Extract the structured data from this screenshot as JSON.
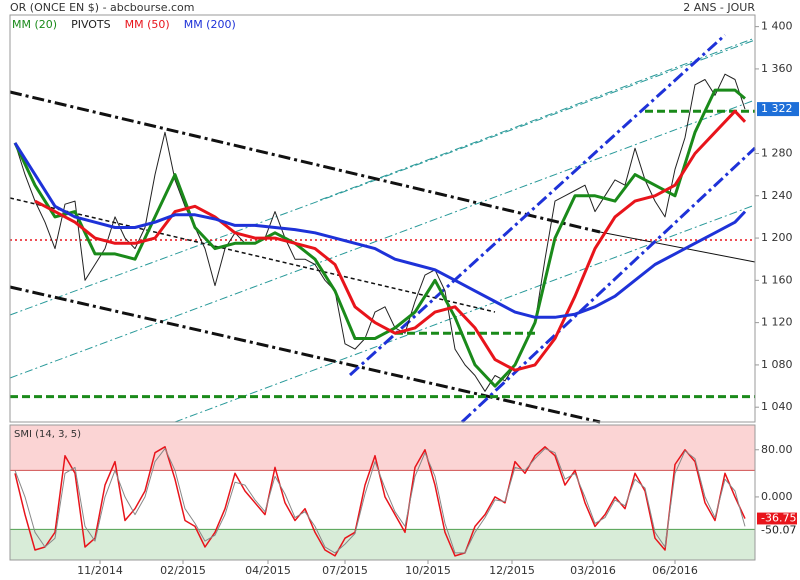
{
  "chart_data": [
    {
      "type": "line",
      "title": "OR (ONCE EN $) - abcbourse.com",
      "subtitle": "2 ANS - JOUR",
      "xlim": [
        -0.5,
        74
      ],
      "ylim": [
        1026,
        1411
      ],
      "yticks": [
        {
          "value": 1040,
          "label": "1 040"
        },
        {
          "value": 1080,
          "label": "1 080"
        },
        {
          "value": 1120,
          "label": "1 120"
        },
        {
          "value": 1160,
          "label": "1 160"
        },
        {
          "value": 1200,
          "label": "1 200"
        },
        {
          "value": 1240,
          "label": "1 240"
        },
        {
          "value": 1280,
          "label": "1 280"
        },
        {
          "value": 1360,
          "label": "1 360"
        },
        {
          "value": 1400,
          "label": "1 400"
        }
      ],
      "current": {
        "value": 1322,
        "label": "1 322"
      },
      "series": [
        {
          "color": "#222222",
          "width": 1,
          "x": [
            0,
            1,
            2,
            3,
            4,
            5,
            6,
            7,
            8,
            9,
            10,
            11,
            12,
            13,
            14,
            15,
            16,
            17,
            18,
            19,
            20,
            21,
            22,
            23,
            24,
            25,
            26,
            27,
            28,
            29,
            30,
            31,
            32,
            33,
            34,
            35,
            36,
            37,
            38,
            39,
            40,
            41,
            42,
            43,
            44,
            45,
            46,
            47,
            48,
            49,
            50,
            51,
            52,
            53,
            54,
            55,
            56,
            57,
            58,
            59,
            60,
            61,
            62,
            63,
            64,
            65,
            66,
            67,
            68,
            69,
            70,
            71,
            72,
            73
          ],
          "values": [
            1290,
            1260,
            1235,
            1215,
            1190,
            1232,
            1235,
            1160,
            1175,
            1190,
            1220,
            1200,
            1190,
            1210,
            1260,
            1300,
            1255,
            1230,
            1210,
            1190,
            1155,
            1190,
            1205,
            1195,
            1195,
            1200,
            1225,
            1200,
            1180,
            1180,
            1175,
            1160,
            1150,
            1100,
            1095,
            1105,
            1130,
            1135,
            1115,
            1110,
            1140,
            1165,
            1170,
            1150,
            1095,
            1080,
            1070,
            1055,
            1070,
            1065,
            1080,
            1100,
            1120,
            1180,
            1235,
            1240,
            1245,
            1250,
            1225,
            1240,
            1255,
            1250,
            1285,
            1255,
            1235,
            1220,
            1265,
            1295,
            1345,
            1350,
            1335,
            1355,
            1350,
            1322
          ]
        },
        {
          "name": "MM (20)",
          "color": "#1a8a1a",
          "width": 3,
          "x": [
            0,
            2,
            4,
            6,
            8,
            10,
            12,
            14,
            16,
            18,
            20,
            22,
            24,
            26,
            28,
            30,
            32,
            34,
            36,
            38,
            40,
            42,
            44,
            46,
            48,
            50,
            52,
            54,
            56,
            58,
            60,
            62,
            64,
            66,
            68,
            70,
            72,
            73
          ],
          "values": [
            1290,
            1250,
            1220,
            1225,
            1185,
            1185,
            1180,
            1220,
            1260,
            1210,
            1190,
            1195,
            1195,
            1205,
            1195,
            1180,
            1150,
            1105,
            1105,
            1115,
            1130,
            1160,
            1125,
            1080,
            1060,
            1080,
            1120,
            1200,
            1240,
            1240,
            1235,
            1260,
            1250,
            1240,
            1300,
            1340,
            1340,
            1332
          ]
        },
        {
          "name": "MM (50)",
          "color": "#e8141b",
          "width": 3,
          "x": [
            2,
            4,
            6,
            8,
            10,
            12,
            14,
            16,
            18,
            20,
            22,
            24,
            26,
            28,
            30,
            32,
            34,
            36,
            38,
            40,
            42,
            44,
            46,
            48,
            50,
            52,
            54,
            56,
            58,
            60,
            62,
            64,
            66,
            68,
            70,
            72,
            73
          ],
          "values": [
            1235,
            1225,
            1215,
            1200,
            1195,
            1195,
            1200,
            1225,
            1230,
            1220,
            1205,
            1200,
            1200,
            1195,
            1190,
            1175,
            1135,
            1120,
            1110,
            1115,
            1130,
            1135,
            1115,
            1085,
            1075,
            1080,
            1105,
            1145,
            1190,
            1220,
            1235,
            1240,
            1250,
            1280,
            1300,
            1320,
            1310
          ]
        },
        {
          "name": "MM (200)",
          "color": "#1e32d8",
          "width": 3,
          "x": [
            0,
            2,
            4,
            6,
            8,
            10,
            12,
            14,
            16,
            18,
            20,
            22,
            24,
            26,
            28,
            30,
            32,
            34,
            36,
            38,
            40,
            42,
            44,
            46,
            48,
            50,
            52,
            54,
            56,
            58,
            60,
            62,
            64,
            66,
            68,
            70,
            72,
            73
          ],
          "values": [
            1290,
            1260,
            1230,
            1220,
            1215,
            1210,
            1210,
            1215,
            1222,
            1222,
            1218,
            1212,
            1212,
            1210,
            1208,
            1205,
            1200,
            1195,
            1190,
            1180,
            1175,
            1170,
            1160,
            1150,
            1140,
            1130,
            1125,
            1125,
            1128,
            1135,
            1145,
            1160,
            1175,
            1185,
            1195,
            1205,
            1215,
            1225
          ]
        }
      ],
      "pivots": {
        "name": "PIVOTS",
        "color": "#1a8a1a",
        "levels": [
          {
            "value": 1320,
            "from": 63,
            "to": 74
          },
          {
            "value": 1110,
            "from": 38,
            "to": 52
          },
          {
            "value": 1050,
            "from": -0.5,
            "to": 74
          }
        ]
      }
    },
    {
      "type": "line",
      "title": "SMI (14, 3, 5)",
      "xlim": [
        -0.5,
        74
      ],
      "ylim": [
        -107,
        122
      ],
      "yticks": [
        {
          "value": 80,
          "label": "80.00"
        },
        {
          "value": 0,
          "label": "0.000"
        }
      ],
      "overbought": 45,
      "oversold": -55,
      "xticks": [
        {
          "value": 8.5,
          "label": "11/2014"
        },
        {
          "value": 16.8,
          "label": "02/2015"
        },
        {
          "value": 25.3,
          "label": "04/2015"
        },
        {
          "value": 33,
          "label": "07/2015"
        },
        {
          "value": 41.3,
          "label": "10/2015"
        },
        {
          "value": 49.7,
          "label": "12/2015"
        },
        {
          "value": 57.8,
          "label": "03/2016"
        },
        {
          "value": 66,
          "label": "06/2016"
        }
      ],
      "series": [
        {
          "color": "#e8141b",
          "width": 1.5,
          "x": [
            0,
            1,
            2,
            3,
            4,
            5,
            6,
            7,
            8,
            9,
            10,
            11,
            12,
            13,
            14,
            15,
            16,
            17,
            18,
            19,
            20,
            21,
            22,
            23,
            24,
            25,
            26,
            27,
            28,
            29,
            30,
            31,
            32,
            33,
            34,
            35,
            36,
            37,
            38,
            39,
            40,
            41,
            42,
            43,
            44,
            45,
            46,
            47,
            48,
            49,
            50,
            51,
            52,
            53,
            54,
            55,
            56,
            57,
            58,
            59,
            60,
            61,
            62,
            63,
            64,
            65,
            66,
            67,
            68,
            69,
            70,
            71,
            72,
            73
          ],
          "values": [
            40,
            -30,
            -90,
            -85,
            -60,
            70,
            40,
            -85,
            -70,
            20,
            60,
            -40,
            -20,
            10,
            75,
            85,
            30,
            -40,
            -50,
            -85,
            -60,
            -20,
            40,
            10,
            -10,
            -30,
            50,
            -10,
            -40,
            -20,
            -60,
            -90,
            -100,
            -70,
            -60,
            20,
            70,
            0,
            -30,
            -60,
            50,
            80,
            20,
            -60,
            -100,
            -95,
            -50,
            -30,
            0,
            -10,
            60,
            40,
            70,
            85,
            70,
            20,
            45,
            -10,
            -50,
            -30,
            0,
            -20,
            40,
            10,
            -70,
            -90,
            55,
            80,
            60,
            -10,
            -40,
            40,
            0,
            -36.75
          ],
          "last_label": {
            "value": -36.75,
            "label": "-36.75"
          }
        },
        {
          "color": "#888888",
          "width": 1,
          "x": [
            0,
            1,
            2,
            3,
            4,
            5,
            6,
            7,
            8,
            9,
            10,
            11,
            12,
            13,
            14,
            15,
            16,
            17,
            18,
            19,
            20,
            21,
            22,
            23,
            24,
            25,
            26,
            27,
            28,
            29,
            30,
            31,
            32,
            33,
            34,
            35,
            36,
            37,
            38,
            39,
            40,
            41,
            42,
            43,
            44,
            45,
            46,
            47,
            48,
            49,
            50,
            51,
            52,
            53,
            54,
            55,
            56,
            57,
            58,
            59,
            60,
            61,
            62,
            63,
            64,
            65,
            66,
            67,
            68,
            69,
            70,
            71,
            72,
            73
          ],
          "values": [
            45,
            0,
            -60,
            -85,
            -70,
            40,
            50,
            -50,
            -75,
            0,
            45,
            0,
            -30,
            0,
            60,
            82,
            45,
            -20,
            -45,
            -75,
            -65,
            -30,
            25,
            20,
            -5,
            -25,
            35,
            5,
            -35,
            -25,
            -50,
            -85,
            -95,
            -80,
            -62,
            5,
            60,
            15,
            -25,
            -50,
            35,
            75,
            35,
            -45,
            -95,
            -95,
            -60,
            -35,
            -5,
            -8,
            50,
            45,
            65,
            82,
            75,
            30,
            40,
            0,
            -45,
            -35,
            -5,
            -15,
            30,
            15,
            -60,
            -85,
            40,
            78,
            65,
            0,
            -35,
            30,
            10,
            -50.07
          ],
          "last_label": {
            "value": -50.07,
            "label": "-50.07"
          }
        }
      ]
    }
  ]
}
